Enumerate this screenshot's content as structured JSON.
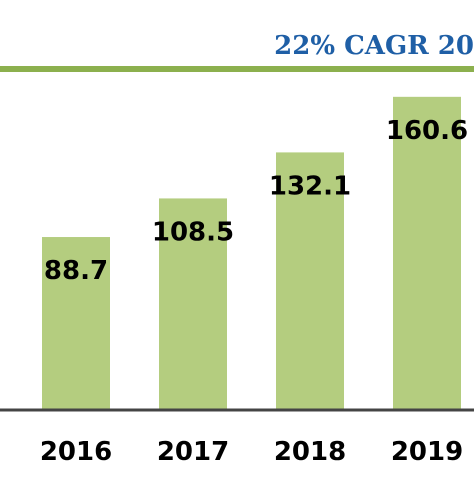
{
  "chart_data": {
    "type": "bar",
    "title": "22% CAGR 20",
    "categories": [
      "2016",
      "2017",
      "2018",
      "2019"
    ],
    "values": [
      88.7,
      108.5,
      132.1,
      160.6
    ],
    "data_labels": [
      "88.7",
      "108.5",
      "132.1",
      "160.6"
    ],
    "xlabel": "",
    "ylabel": "",
    "ylim": [
      0,
      180
    ],
    "grid": false,
    "legend": "none"
  },
  "colors": {
    "bar": "#b4cd7f",
    "rule": "#8cb04e",
    "axis": "#444444",
    "title": "#1f5fa6"
  }
}
